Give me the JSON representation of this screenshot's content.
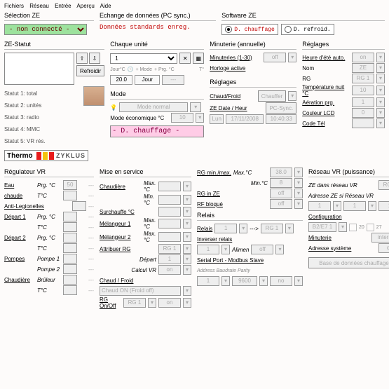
{
  "menubar": [
    "Fichiers",
    "Réseau",
    "Entrée",
    "Aperçu",
    "Aide"
  ],
  "top": {
    "sel_ze_title": "Sélection ZE",
    "sel_ze_value": "- non connecté -",
    "echange_title": "Echange de données (PC sync.)",
    "echange_value": "Données standards enreg.",
    "software_title": "Software ZE",
    "radio_chauf": "D. chauffage",
    "radio_refroid": "D. refroid."
  },
  "ze_statut": {
    "title": "ZE-Statut",
    "refroid_btn": "Refroidir",
    "statuts": [
      "Statut 1: total",
      "Statut 2: unités",
      "Statut 3: radio",
      "Statut 4: MMC",
      "Statut 5: VR rés."
    ],
    "logo_left": "Thermo",
    "logo_right": "ZYKLUS",
    "logo_colors": [
      "#e81b1b",
      "#f4c20d",
      "#e81b1b"
    ]
  },
  "chaque_unite": {
    "title": "Chaque unité",
    "unit_value": "1",
    "line2_labels": [
      "Jour°C",
      "+ Mode",
      "+ Prg. °C",
      "T°"
    ],
    "line3_val1": "20.0",
    "line3_val2": "Jour",
    "line3_val3": "---"
  },
  "mode": {
    "title": "Mode",
    "eco_label": "Mode économique °C"
  },
  "minuterie": {
    "title": "Minuterie (annuelle)",
    "link1": "Minuteries (1-30)",
    "link2": "Horloge active"
  },
  "reglages_mid": {
    "title": "Réglages",
    "link1": "Chaud/Froid",
    "btn1": "Chauffer",
    "link2": "ZE Date / Heur",
    "btn2": "PC-Sync."
  },
  "reglages_right": {
    "title": "Réglages",
    "rows": [
      [
        "Heure d'été auto.",
        "on"
      ],
      [
        "Nom",
        "ZE"
      ],
      [
        "RG",
        "RG 1"
      ],
      [
        "Température nuit °C",
        "10"
      ],
      [
        "Aération prg.",
        "1"
      ],
      [
        "Couleur LCD",
        "0"
      ],
      [
        "Code Tél",
        ""
      ]
    ]
  },
  "banner": "- D. chauffage -",
  "reg_vr": {
    "title": "Régulateur VR",
    "rows": [
      [
        "Eau",
        "Prg. °C",
        "50",
        "---"
      ],
      [
        "chaude",
        "T°C",
        "",
        "---"
      ],
      [
        "Anti-Legionelles",
        "",
        "",
        "---"
      ],
      [
        "Départ 1",
        "Prg. °C",
        "",
        "---"
      ],
      [
        "",
        "T°C",
        "",
        "---"
      ],
      [
        "Départ 2",
        "Prg. °C",
        "",
        "---"
      ],
      [
        "",
        "T°C",
        "",
        "---"
      ],
      [
        "Pompes",
        "Pompe 1",
        "",
        "---"
      ],
      [
        "",
        "Pompe 2",
        "",
        "---"
      ],
      [
        "Chaudière",
        "Brûleur",
        "",
        "---"
      ],
      [
        "",
        "T°C",
        "",
        "---"
      ]
    ]
  },
  "mise": {
    "title": "Mise en service",
    "rows1": [
      [
        "Chaudière",
        "Max.°C"
      ],
      [
        "",
        "Min.°C"
      ],
      [
        "Surchauffe °C",
        ""
      ],
      [
        "Mélangeur 1",
        "Max.°C"
      ],
      [
        "Mélangeur 2",
        "Max.°C"
      ]
    ],
    "attrib": "Attribuer RG",
    "depart": "Départ",
    "calcul": "Calcul VR",
    "cf_title": "Chaud / Froid",
    "cf_box": "Chaud ON (Froid off)",
    "rg_onoff": "RG On/Off"
  },
  "col3": {
    "rg_minmax": "RG min./max.",
    "maxc": "Max.°C",
    "minc": "Min.°C",
    "rg_in_ze": "RG in ZE",
    "rf_bloque": "RF bloqué",
    "relais_title": "Relais",
    "relais": "Relais",
    "inv_relais": "Inverser relais",
    "alimen": "Alimen",
    "serial_title": "Serial Port - Modbus Slave",
    "serial_labels": "Address  Baudrate   Parity"
  },
  "col4": {
    "title": "Réseau VR (puissance)",
    "l1": "ZE dans réseau VR",
    "l2": "Adresse ZE si Réseau VR",
    "config": "Configuration",
    "minuterie": "Minuterie",
    "adresse": "Adresse système",
    "base": "Base de données chauffage"
  }
}
